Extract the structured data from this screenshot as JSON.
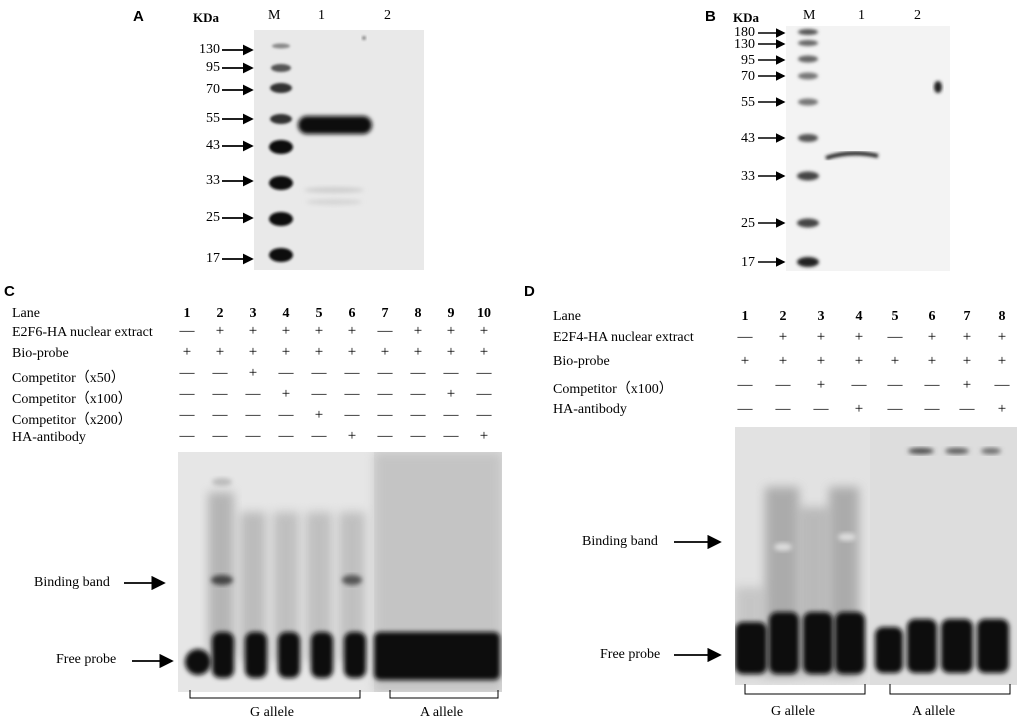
{
  "panelA": {
    "letter": "A",
    "unit": "KDa",
    "lanes": [
      "M",
      "1",
      "2"
    ],
    "markers": [
      "130",
      "95",
      "70",
      "55",
      "43",
      "33",
      "25",
      "17"
    ]
  },
  "panelB": {
    "letter": "B",
    "unit": "KDa",
    "lanes": [
      "M",
      "1",
      "2"
    ],
    "markers": [
      "180",
      "130",
      "95",
      "70",
      "55",
      "43",
      "33",
      "25",
      "17"
    ]
  },
  "panelC": {
    "letter": "C",
    "lane_header": "Lane",
    "lane_numbers": [
      "1",
      "2",
      "3",
      "4",
      "5",
      "6",
      "7",
      "8",
      "9",
      "10"
    ],
    "rows": [
      {
        "label": "E2F6-HA nuclear extract",
        "signs": [
          "—",
          "+",
          "+",
          "+",
          "+",
          "+",
          "—",
          "+",
          "+",
          "+"
        ]
      },
      {
        "label": "Bio-probe",
        "signs": [
          "+",
          "+",
          "+",
          "+",
          "+",
          "+",
          "+",
          "+",
          "+",
          "+"
        ]
      },
      {
        "label": "Competitor（x50）",
        "signs": [
          "—",
          "—",
          "+",
          "—",
          "—",
          "—",
          "—",
          "—",
          "—",
          "—"
        ]
      },
      {
        "label": "Competitor（x100）",
        "signs": [
          "—",
          "—",
          "—",
          "+",
          "—",
          "—",
          "—",
          "—",
          "+",
          "—"
        ]
      },
      {
        "label": "Competitor（x200）",
        "signs": [
          "—",
          "—",
          "—",
          "—",
          "+",
          "—",
          "—",
          "—",
          "—",
          "—"
        ]
      },
      {
        "label": "HA-antibody",
        "signs": [
          "—",
          "—",
          "—",
          "—",
          "—",
          "+",
          "—",
          "—",
          "—",
          "+"
        ]
      }
    ],
    "binding_label": "Binding band",
    "free_label": "Free probe",
    "group_left": "G allele",
    "group_right": "A allele"
  },
  "panelD": {
    "letter": "D",
    "lane_header": "Lane",
    "lane_numbers": [
      "1",
      "2",
      "3",
      "4",
      "5",
      "6",
      "7",
      "8"
    ],
    "rows": [
      {
        "label": "E2F4-HA nuclear extract",
        "signs": [
          "—",
          "+",
          "+",
          "+",
          "—",
          "+",
          "+",
          "+"
        ]
      },
      {
        "label": "Bio-probe",
        "signs": [
          "+",
          "+",
          "+",
          "+",
          "+",
          "+",
          "+",
          "+"
        ]
      },
      {
        "label": "Competitor（x100）",
        "signs": [
          "—",
          "—",
          "+",
          "—",
          "—",
          "—",
          "+",
          "—"
        ]
      },
      {
        "label": "HA-antibody",
        "signs": [
          "—",
          "—",
          "—",
          "+",
          "—",
          "—",
          "—",
          "+"
        ]
      }
    ],
    "binding_label": "Binding band",
    "free_label": "Free probe",
    "group_left": "G allele",
    "group_right": "A allele"
  }
}
